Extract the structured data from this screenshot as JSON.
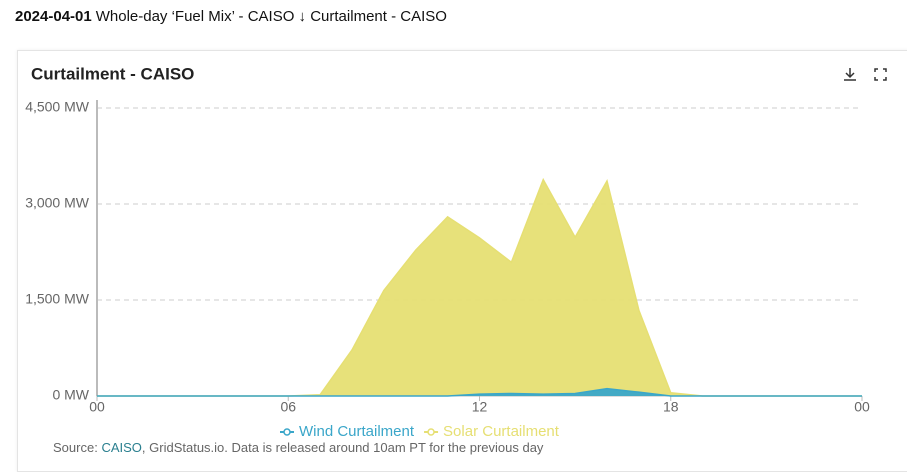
{
  "header": {
    "date": "2024-04-01",
    "title": "Whole-day ‘Fuel Mix’ - CAISO ↓ Curtailment - CAISO"
  },
  "chart_data": {
    "type": "area",
    "title": "Curtailment - CAISO",
    "x": [
      0,
      1,
      2,
      3,
      4,
      5,
      6,
      7,
      8,
      9,
      10,
      11,
      12,
      13,
      14,
      15,
      16,
      17,
      18,
      19,
      20,
      21,
      22,
      23,
      24
    ],
    "series": [
      {
        "name": "Solar Curtailment",
        "color": "#e6df73",
        "values": [
          0,
          0,
          0,
          0,
          0,
          0,
          0,
          20,
          720,
          1650,
          2280,
          2800,
          2470,
          2090,
          3380,
          2480,
          3360,
          1340,
          50,
          0,
          0,
          0,
          0,
          0,
          0
        ]
      },
      {
        "name": "Wind Curtailment",
        "color": "#3aa6c9",
        "values": [
          0,
          0,
          0,
          0,
          0,
          0,
          0,
          0,
          0,
          0,
          0,
          0,
          30,
          40,
          30,
          40,
          115,
          60,
          0,
          0,
          0,
          0,
          0,
          0,
          0
        ]
      }
    ],
    "xlim": [
      0,
      24
    ],
    "xticks": [
      {
        "value": 0,
        "label": "00"
      },
      {
        "value": 6,
        "label": "06"
      },
      12,
      18,
      {
        "value": 24,
        "label": "00"
      }
    ],
    "ylim": [
      0,
      4500
    ],
    "yticks": [
      {
        "value": 0,
        "label": "0 MW"
      },
      {
        "value": 1500,
        "label": "1,500 MW"
      },
      {
        "value": 3000,
        "label": "3,000 MW"
      },
      {
        "value": 4500,
        "label": "4,500 MW"
      }
    ],
    "grid": true,
    "legend": "bottom"
  },
  "source": {
    "prefix": "Source:",
    "link": "CAISO",
    "rest": ", GridStatus.io. Data is released around 10am PT for the previous day"
  }
}
